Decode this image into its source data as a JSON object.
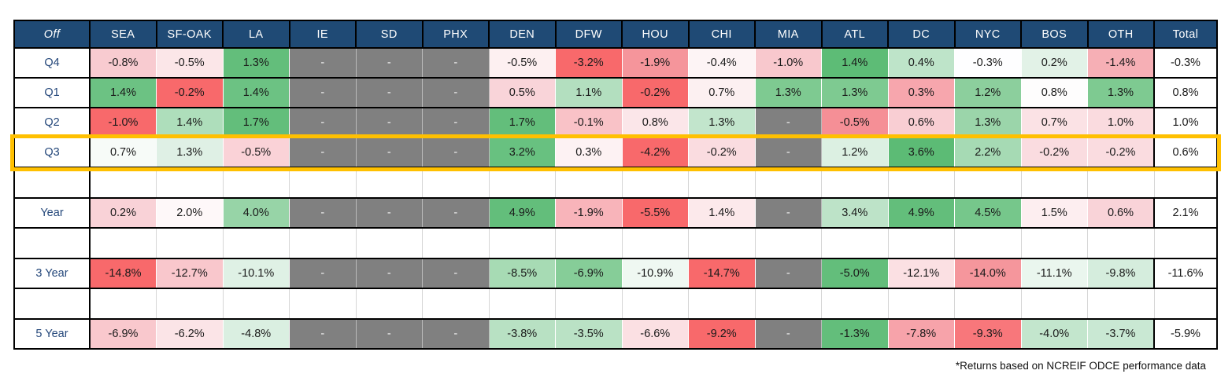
{
  "table": {
    "corner_label": "Off",
    "columns": [
      "SEA",
      "SF-OAK",
      "LA",
      "IE",
      "SD",
      "PHX",
      "DEN",
      "DFW",
      "HOU",
      "CHI",
      "MIA",
      "ATL",
      "DC",
      "NYC",
      "BOS",
      "OTH",
      "Total"
    ],
    "rows": [
      {
        "type": "data",
        "label": "Q4",
        "highlight": false,
        "cells": [
          {
            "v": "-0.8%",
            "bg": "#F8CBD0"
          },
          {
            "v": "-0.5%",
            "bg": "#FBE6E8"
          },
          {
            "v": "1.3%",
            "bg": "#63BE7B"
          },
          {
            "v": "-"
          },
          {
            "v": "-"
          },
          {
            "v": "-"
          },
          {
            "v": "-0.5%",
            "bg": "#FDF0F1"
          },
          {
            "v": "-3.2%",
            "bg": "#F8696B"
          },
          {
            "v": "-1.9%",
            "bg": "#F5959B"
          },
          {
            "v": "-0.4%",
            "bg": "#FDF4F5"
          },
          {
            "v": "-1.0%",
            "bg": "#F8C8CD"
          },
          {
            "v": "1.4%",
            "bg": "#5DBC76"
          },
          {
            "v": "0.4%",
            "bg": "#BEE4C9"
          },
          {
            "v": "-0.3%",
            "bg": "#FEFEFF"
          },
          {
            "v": "0.2%",
            "bg": "#E2F2E7"
          },
          {
            "v": "-1.4%",
            "bg": "#F6AFB5"
          },
          {
            "v": "-0.3%",
            "bg": "#FFFFFF"
          }
        ]
      },
      {
        "type": "data",
        "label": "Q1",
        "highlight": false,
        "cells": [
          {
            "v": "1.4%",
            "bg": "#6CC283"
          },
          {
            "v": "-0.2%",
            "bg": "#F8696B"
          },
          {
            "v": "1.4%",
            "bg": "#6CC283"
          },
          {
            "v": "-"
          },
          {
            "v": "-"
          },
          {
            "v": "-"
          },
          {
            "v": "0.5%",
            "bg": "#F9D4D9"
          },
          {
            "v": "1.1%",
            "bg": "#B3DFBF"
          },
          {
            "v": "-0.2%",
            "bg": "#F8696B"
          },
          {
            "v": "0.7%",
            "bg": "#FCF0F1"
          },
          {
            "v": "1.3%",
            "bg": "#7ECA91"
          },
          {
            "v": "1.3%",
            "bg": "#7ECA91"
          },
          {
            "v": "0.3%",
            "bg": "#F7A6AD"
          },
          {
            "v": "1.2%",
            "bg": "#8CCF9D"
          },
          {
            "v": "0.8%",
            "bg": "#FEFDFD"
          },
          {
            "v": "1.3%",
            "bg": "#7ECA91"
          },
          {
            "v": "0.8%",
            "bg": "#FFFFFF"
          }
        ]
      },
      {
        "type": "data",
        "label": "Q2",
        "highlight": false,
        "cells": [
          {
            "v": "-1.0%",
            "bg": "#F8696B"
          },
          {
            "v": "1.4%",
            "bg": "#AEDEBB"
          },
          {
            "v": "1.7%",
            "bg": "#63BE7B"
          },
          {
            "v": "-"
          },
          {
            "v": "-"
          },
          {
            "v": "-"
          },
          {
            "v": "1.7%",
            "bg": "#63BE7B"
          },
          {
            "v": "-0.1%",
            "bg": "#F9C2C7"
          },
          {
            "v": "0.8%",
            "bg": "#FBE6E9"
          },
          {
            "v": "1.3%",
            "bg": "#C2E5CC"
          },
          {
            "v": "-"
          },
          {
            "v": "-0.5%",
            "bg": "#F58F96"
          },
          {
            "v": "0.6%",
            "bg": "#F9CED3"
          },
          {
            "v": "1.3%",
            "bg": "#9BD5AA"
          },
          {
            "v": "0.7%",
            "bg": "#FBE2E5"
          },
          {
            "v": "1.0%",
            "bg": "#FADBDF"
          },
          {
            "v": "1.0%",
            "bg": "#FFFFFF"
          }
        ]
      },
      {
        "type": "data",
        "label": "Q3",
        "highlight": true,
        "cells": [
          {
            "v": "0.7%",
            "bg": "#F7FBF8"
          },
          {
            "v": "1.3%",
            "bg": "#DFF0E5"
          },
          {
            "v": "-0.5%",
            "bg": "#FAD2D7"
          },
          {
            "v": "-"
          },
          {
            "v": "-"
          },
          {
            "v": "-"
          },
          {
            "v": "3.2%",
            "bg": "#68C180"
          },
          {
            "v": "0.3%",
            "bg": "#FDF2F3"
          },
          {
            "v": "-4.2%",
            "bg": "#F8696B"
          },
          {
            "v": "-0.2%",
            "bg": "#FADCE0"
          },
          {
            "v": "-"
          },
          {
            "v": "1.2%",
            "bg": "#DCF0E2"
          },
          {
            "v": "3.6%",
            "bg": "#5CBB75"
          },
          {
            "v": "2.2%",
            "bg": "#A6DAB4"
          },
          {
            "v": "-0.2%",
            "bg": "#FADCE0"
          },
          {
            "v": "-0.2%",
            "bg": "#FADCE0"
          },
          {
            "v": "0.6%",
            "bg": "#FFFFFF"
          }
        ]
      },
      {
        "type": "spacer"
      },
      {
        "type": "data",
        "label": "Year",
        "highlight": false,
        "cells": [
          {
            "v": "0.2%",
            "bg": "#F9D2D7"
          },
          {
            "v": "2.0%",
            "bg": "#FEF8F9"
          },
          {
            "v": "4.0%",
            "bg": "#97D4A7"
          },
          {
            "v": "-"
          },
          {
            "v": "-"
          },
          {
            "v": "-"
          },
          {
            "v": "4.9%",
            "bg": "#63BE7B"
          },
          {
            "v": "-1.9%",
            "bg": "#F8B4BA"
          },
          {
            "v": "-5.5%",
            "bg": "#F8696B"
          },
          {
            "v": "1.4%",
            "bg": "#FCE9EB"
          },
          {
            "v": "-"
          },
          {
            "v": "3.4%",
            "bg": "#BDE3C8"
          },
          {
            "v": "4.9%",
            "bg": "#63BE7B"
          },
          {
            "v": "4.5%",
            "bg": "#76C78B"
          },
          {
            "v": "1.5%",
            "bg": "#FDEEF0"
          },
          {
            "v": "0.6%",
            "bg": "#F9D3D8"
          },
          {
            "v": "2.1%",
            "bg": "#FFFFFF"
          }
        ]
      },
      {
        "type": "spacer"
      },
      {
        "type": "data",
        "label": "3 Year",
        "highlight": false,
        "cells": [
          {
            "v": "-14.8%",
            "bg": "#F8696B"
          },
          {
            "v": "-12.7%",
            "bg": "#F9C7CC"
          },
          {
            "v": "-10.1%",
            "bg": "#DFF1E5"
          },
          {
            "v": "-"
          },
          {
            "v": "-"
          },
          {
            "v": "-"
          },
          {
            "v": "-8.5%",
            "bg": "#A7DBB4"
          },
          {
            "v": "-6.9%",
            "bg": "#86CD98"
          },
          {
            "v": "-10.9%",
            "bg": "#EFF8F2"
          },
          {
            "v": "-14.7%",
            "bg": "#F8696B"
          },
          {
            "v": "-"
          },
          {
            "v": "-5.0%",
            "bg": "#63BE7B"
          },
          {
            "v": "-12.1%",
            "bg": "#FBE0E3"
          },
          {
            "v": "-14.0%",
            "bg": "#F5969C"
          },
          {
            "v": "-11.1%",
            "bg": "#EAF6EE"
          },
          {
            "v": "-9.8%",
            "bg": "#D5EDDD"
          },
          {
            "v": "-11.6%",
            "bg": "#FFFFFF"
          }
        ]
      },
      {
        "type": "spacer"
      },
      {
        "type": "data",
        "label": "5 Year",
        "highlight": false,
        "cells": [
          {
            "v": "-6.9%",
            "bg": "#F9C8CD"
          },
          {
            "v": "-6.2%",
            "bg": "#FBE4E7"
          },
          {
            "v": "-4.8%",
            "bg": "#DAEFE1"
          },
          {
            "v": "-"
          },
          {
            "v": "-"
          },
          {
            "v": "-"
          },
          {
            "v": "-3.8%",
            "bg": "#B8E1C3"
          },
          {
            "v": "-3.5%",
            "bg": "#BAE2C5"
          },
          {
            "v": "-6.6%",
            "bg": "#FBE0E3"
          },
          {
            "v": "-9.2%",
            "bg": "#F8696B"
          },
          {
            "v": "-"
          },
          {
            "v": "-1.3%",
            "bg": "#63BE7B"
          },
          {
            "v": "-7.8%",
            "bg": "#F7A3AA"
          },
          {
            "v": "-9.3%",
            "bg": "#F8777B"
          },
          {
            "v": "-4.0%",
            "bg": "#C3E6CD"
          },
          {
            "v": "-3.7%",
            "bg": "#C9E8D3"
          },
          {
            "v": "-5.9%",
            "bg": "#FFFFFF"
          }
        ]
      }
    ]
  },
  "colors": {
    "header_bg": "#1F4A75",
    "header_text": "#FFFFFF",
    "row_label_text": "#24477A",
    "na_bg": "#808080",
    "highlight_border": "#FFC000",
    "strong_green": "#63BE7B",
    "strong_red": "#F8696B"
  },
  "footnote": "*Returns based on NCREIF ODCE performance data"
}
